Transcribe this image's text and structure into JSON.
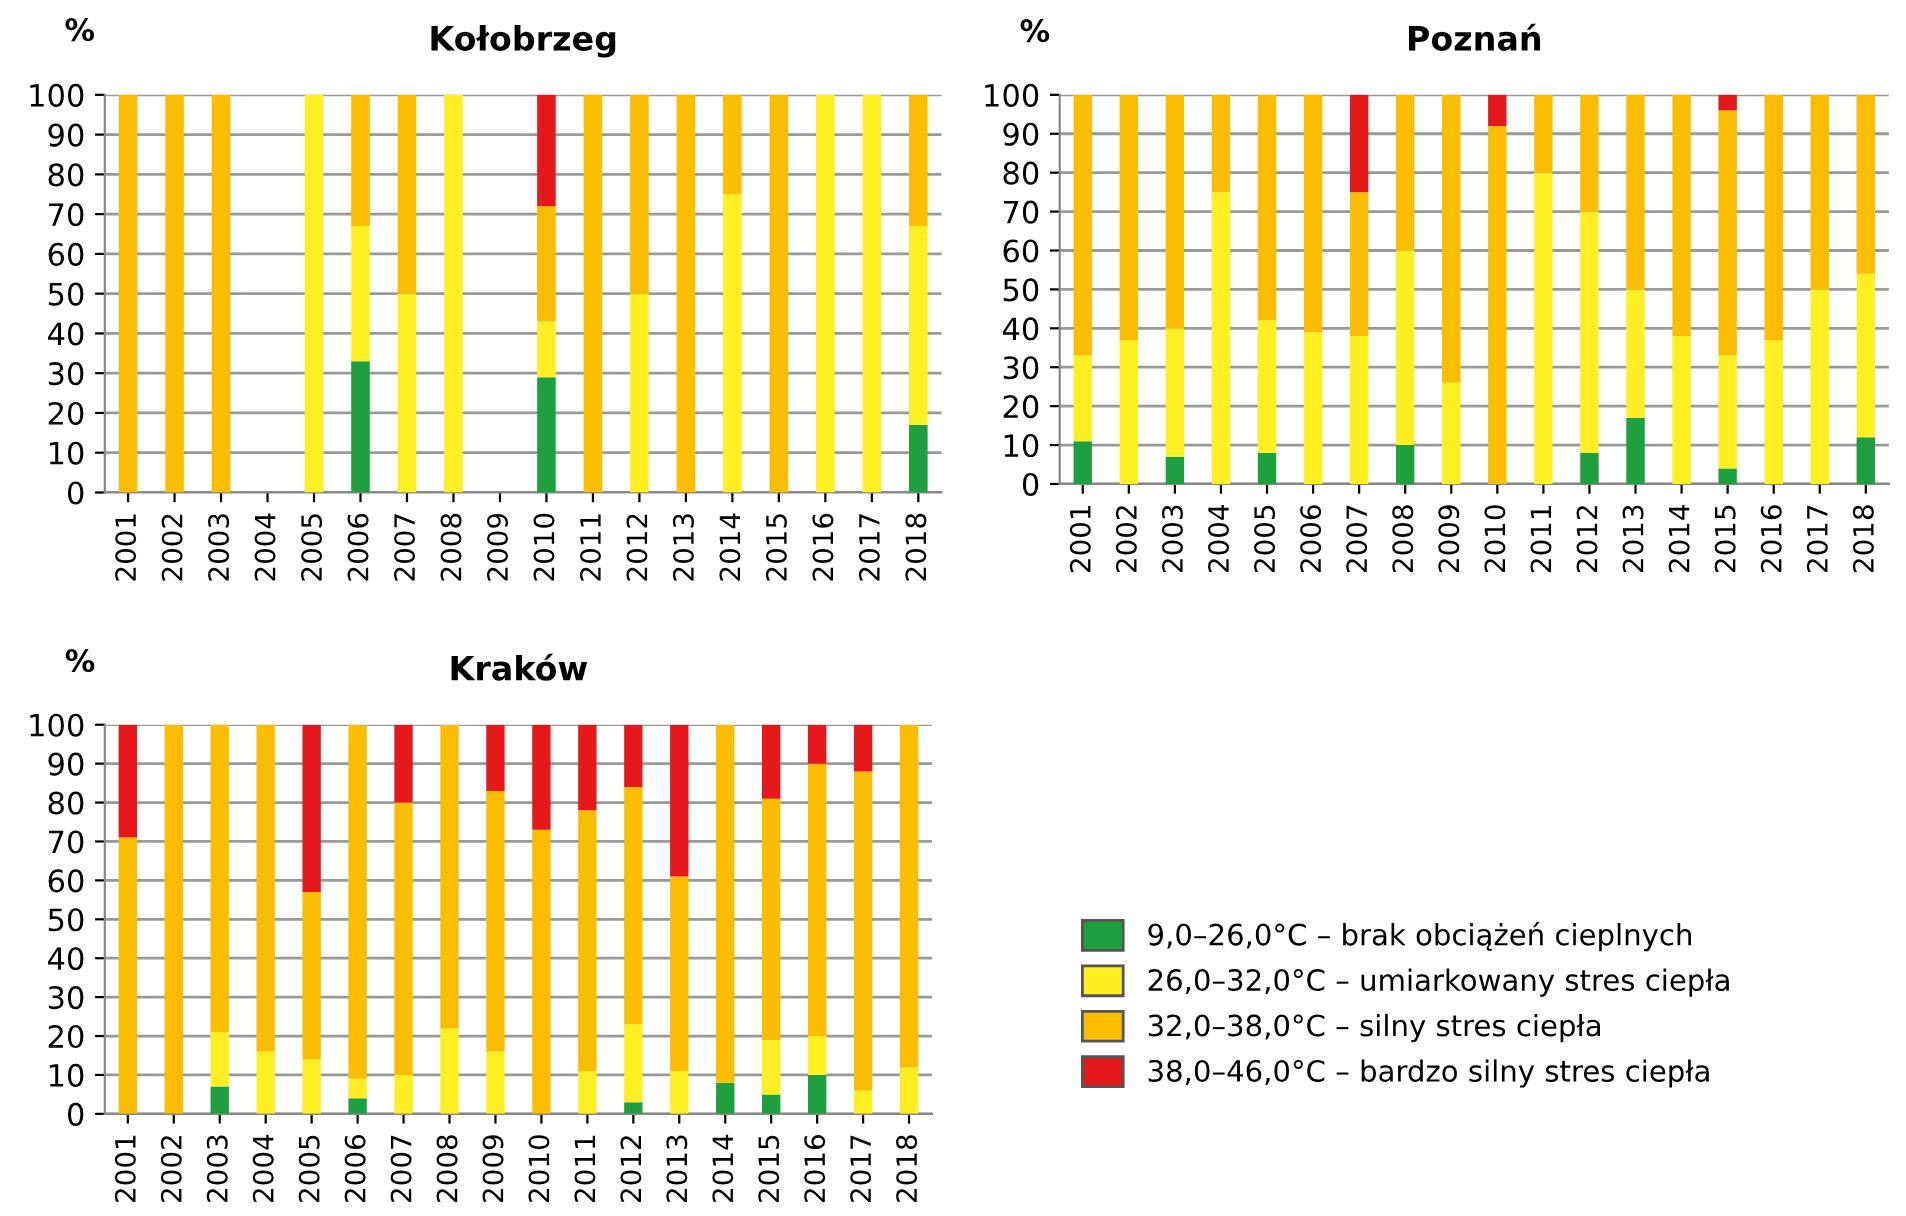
{
  "chart_data": [
    {
      "type": "bar",
      "title": "Kołobrzeg",
      "ylabel": "%",
      "stacked": true,
      "grid": "y",
      "ylim": [
        0,
        100
      ],
      "yticks": [
        0,
        10,
        20,
        30,
        40,
        50,
        60,
        70,
        80,
        90,
        100
      ],
      "categories": [
        "2001",
        "2002",
        "2003",
        "2004",
        "2005",
        "2006",
        "2007",
        "2008",
        "2009",
        "2010",
        "2011",
        "2012",
        "2013",
        "2014",
        "2015",
        "2016",
        "2017",
        "2018"
      ],
      "series": [
        {
          "color": "#1fa040",
          "values": [
            0,
            0,
            0,
            0,
            0,
            33,
            0,
            0,
            0,
            29,
            0,
            0,
            0,
            0,
            0,
            0,
            0,
            17
          ]
        },
        {
          "color": "#ffee22",
          "values": [
            0,
            0,
            0,
            0,
            100,
            34,
            50,
            100,
            0,
            14,
            0,
            50,
            0,
            75,
            0,
            100,
            100,
            50
          ]
        },
        {
          "color": "#fbbd00",
          "values": [
            100,
            100,
            100,
            0,
            0,
            33,
            50,
            0,
            0,
            29,
            100,
            50,
            100,
            25,
            100,
            0,
            0,
            33
          ]
        },
        {
          "color": "#e5191b",
          "values": [
            0,
            0,
            0,
            0,
            0,
            0,
            0,
            0,
            0,
            28,
            0,
            0,
            0,
            0,
            0,
            0,
            0,
            0
          ]
        }
      ]
    },
    {
      "type": "bar",
      "title": "Poznań",
      "ylabel": "%",
      "stacked": true,
      "grid": "y",
      "ylim": [
        0,
        100
      ],
      "yticks": [
        0,
        10,
        20,
        30,
        40,
        50,
        60,
        70,
        80,
        90,
        100
      ],
      "categories": [
        "2001",
        "2002",
        "2003",
        "2004",
        "2005",
        "2006",
        "2007",
        "2008",
        "2009",
        "2010",
        "2011",
        "2012",
        "2013",
        "2014",
        "2015",
        "2016",
        "2017",
        "2018"
      ],
      "series": [
        {
          "color": "#1fa040",
          "values": [
            11,
            0,
            7,
            0,
            8,
            0,
            0,
            10,
            0,
            0,
            0,
            8,
            17,
            0,
            4,
            0,
            0,
            12
          ]
        },
        {
          "color": "#ffee22",
          "values": [
            22,
            37,
            33,
            75,
            34,
            39,
            38,
            50,
            26,
            0,
            80,
            62,
            33,
            38,
            29,
            37,
            50,
            42
          ]
        },
        {
          "color": "#fbbd00",
          "values": [
            67,
            63,
            60,
            25,
            58,
            61,
            37,
            40,
            74,
            92,
            20,
            30,
            50,
            62,
            63,
            63,
            50,
            46
          ]
        },
        {
          "color": "#e5191b",
          "values": [
            0,
            0,
            0,
            0,
            0,
            0,
            25,
            0,
            0,
            8,
            0,
            0,
            0,
            0,
            4,
            0,
            0,
            0
          ]
        }
      ]
    },
    {
      "type": "bar",
      "title": "Kraków",
      "ylabel": "%",
      "stacked": true,
      "grid": "y",
      "legend": "right",
      "ylim": [
        0,
        100
      ],
      "yticks": [
        0,
        10,
        20,
        30,
        40,
        50,
        60,
        70,
        80,
        90,
        100
      ],
      "categories": [
        "2001",
        "2002",
        "2003",
        "2004",
        "2005",
        "2006",
        "2007",
        "2008",
        "2009",
        "2010",
        "2011",
        "2012",
        "2013",
        "2014",
        "2015",
        "2016",
        "2017",
        "2018"
      ],
      "series": [
        {
          "name": "9,0–26,0°C – brak obciążeń cieplnych",
          "color": "#1fa040",
          "values": [
            0,
            0,
            7,
            0,
            0,
            4,
            0,
            0,
            0,
            0,
            0,
            3,
            0,
            8,
            5,
            10,
            0,
            0
          ]
        },
        {
          "name": "26,0–32,0°C – umiarkowany stres ciepła",
          "color": "#ffee22",
          "values": [
            0,
            0,
            14,
            16,
            14,
            5,
            10,
            22,
            16,
            0,
            11,
            20,
            11,
            0,
            14,
            10,
            6,
            12
          ]
        },
        {
          "name": "32,0–38,0°C – silny stres ciepła",
          "color": "#fbbd00",
          "values": [
            71,
            100,
            79,
            84,
            43,
            91,
            70,
            78,
            67,
            73,
            67,
            61,
            50,
            92,
            62,
            70,
            82,
            88
          ]
        },
        {
          "name": "38,0–46,0°C – bardzo silny stres ciepła",
          "color": "#e5191b",
          "values": [
            29,
            0,
            0,
            0,
            43,
            0,
            20,
            0,
            17,
            27,
            22,
            16,
            39,
            0,
            19,
            10,
            12,
            0
          ]
        }
      ]
    }
  ]
}
